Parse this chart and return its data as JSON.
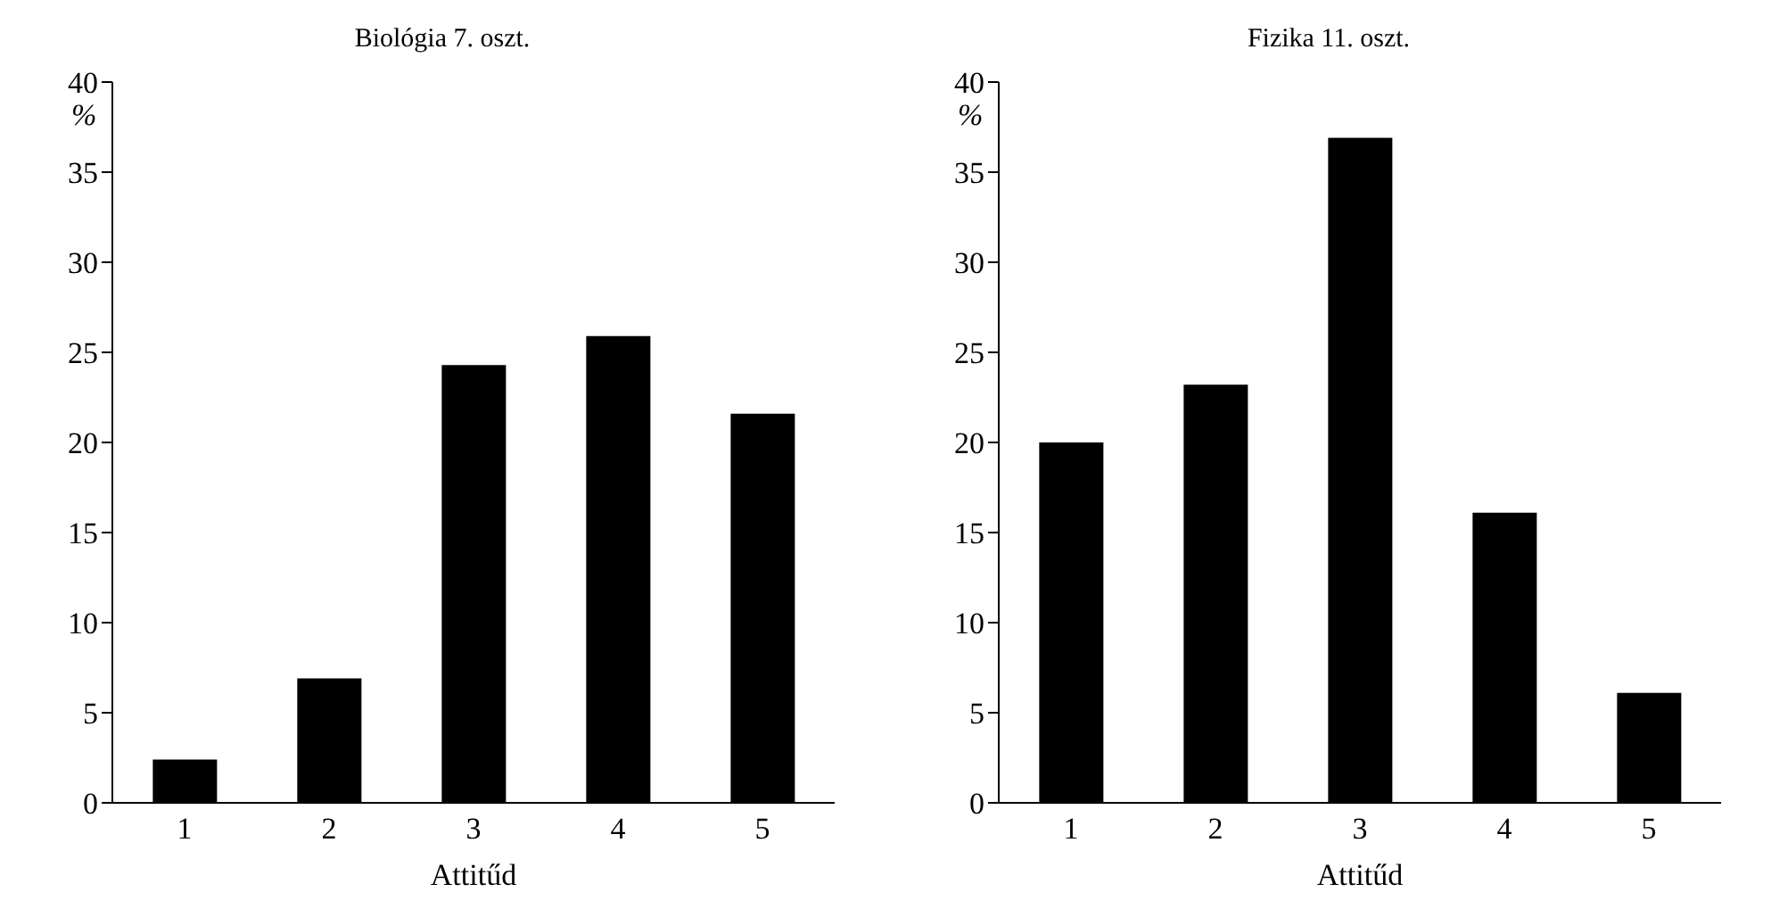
{
  "chart_data": [
    {
      "type": "bar",
      "title": "Biológia 7. oszt.",
      "xlabel": "Attitűd",
      "ylabel": "%",
      "categories": [
        "1",
        "2",
        "3",
        "4",
        "5"
      ],
      "values": [
        2.4,
        6.9,
        24.3,
        25.9,
        21.6
      ],
      "color": "#000000",
      "ylim": [
        0,
        40
      ],
      "yticks": [
        0,
        5,
        10,
        15,
        20,
        25,
        30,
        35,
        40
      ],
      "grid": false,
      "legend": false
    },
    {
      "type": "bar",
      "title": "Fizika 11. oszt.",
      "xlabel": "Attitűd",
      "ylabel": "%",
      "categories": [
        "1",
        "2",
        "3",
        "4",
        "5"
      ],
      "values": [
        20.0,
        23.2,
        36.9,
        16.1,
        6.1
      ],
      "color": "#000000",
      "ylim": [
        0,
        40
      ],
      "yticks": [
        0,
        5,
        10,
        15,
        20,
        25,
        30,
        35,
        40
      ],
      "grid": false,
      "legend": false
    }
  ]
}
